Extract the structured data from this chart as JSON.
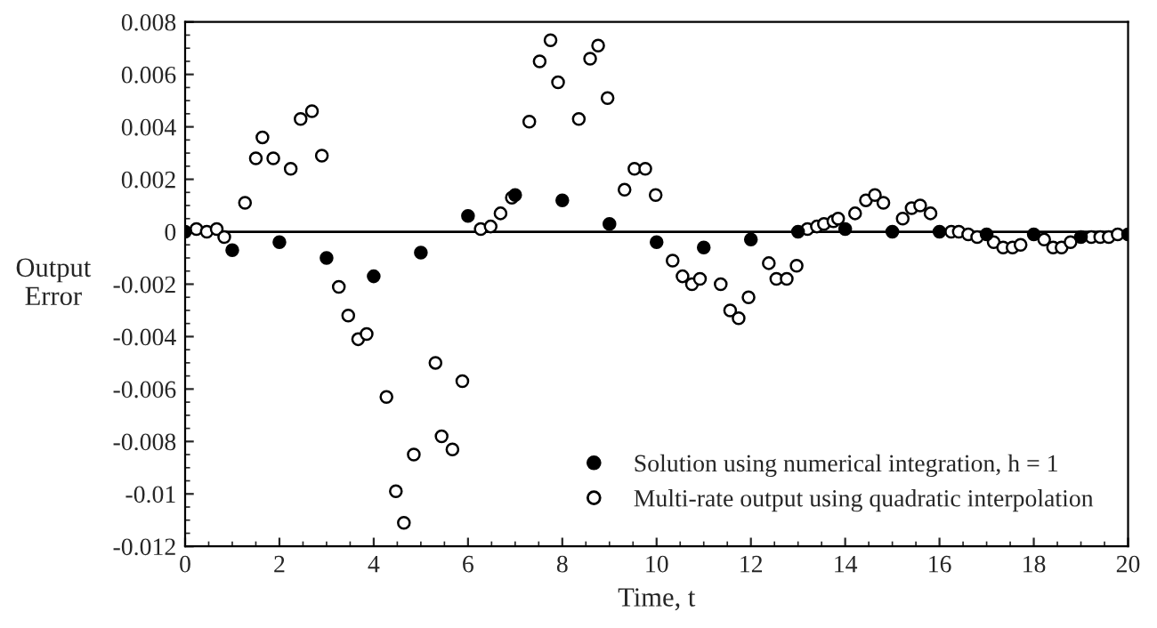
{
  "chart_data": {
    "type": "scatter",
    "xlabel": "Time, t",
    "ylabel": "Output\nError",
    "xlim": [
      0,
      20
    ],
    "ylim": [
      -0.012,
      0.008
    ],
    "xticks": [
      0,
      2,
      4,
      6,
      8,
      10,
      12,
      14,
      16,
      18,
      20
    ],
    "yticks": [
      -0.012,
      -0.01,
      -0.008,
      -0.006,
      -0.004,
      -0.002,
      0,
      0.002,
      0.004,
      0.006,
      0.008
    ],
    "grid": false,
    "legend": "bottom right",
    "ref_lines": [
      {
        "axis": "y",
        "value": 0,
        "color": "#000000"
      }
    ],
    "series": [
      {
        "name": "Solution using numerical integration, h = 1",
        "color": "#000000",
        "marker": "circle",
        "x": [
          0,
          1,
          2,
          3,
          4,
          5,
          6,
          7,
          8,
          9,
          10,
          11,
          12,
          13,
          14,
          15,
          16,
          17,
          18,
          19,
          20
        ],
        "values": [
          0,
          -0.0007,
          -0.0004,
          -0.001,
          -0.0017,
          -0.0008,
          0.0006,
          0.0014,
          0.0012,
          0.0003,
          -0.0004,
          -0.0006,
          -0.0003,
          0,
          0.0001,
          0,
          0,
          -0.0001,
          -0.0001,
          -0.0002,
          -0.0001
        ]
      },
      {
        "name": "Multi-rate output using quadratic interpolation",
        "color": "#ffffff",
        "marker": "circle",
        "x": [
          0.24,
          0.46,
          0.67,
          0.83,
          1.27,
          1.5,
          1.64,
          1.87,
          2.24,
          2.45,
          2.69,
          2.9,
          3.26,
          3.46,
          3.67,
          3.85,
          4.27,
          4.47,
          4.64,
          4.85,
          5.31,
          5.44,
          5.67,
          5.88,
          6.27,
          6.48,
          6.69,
          6.93,
          7.3,
          7.52,
          7.75,
          7.91,
          8.35,
          8.59,
          8.76,
          8.96,
          9.32,
          9.53,
          9.76,
          9.98,
          10.34,
          10.55,
          10.75,
          10.92,
          11.36,
          11.56,
          11.74,
          11.95,
          12.38,
          12.54,
          12.76,
          12.97,
          13.2,
          13.4,
          13.55,
          13.75,
          13.85,
          14.21,
          14.44,
          14.63,
          14.81,
          15.22,
          15.41,
          15.59,
          15.81,
          16.25,
          16.41,
          16.61,
          16.8,
          17.15,
          17.35,
          17.55,
          17.72,
          18.22,
          18.41,
          18.59,
          18.78,
          19.22,
          19.41,
          19.59,
          19.78
        ],
        "values": [
          0.0001,
          0,
          0.0001,
          -0.0002,
          0.0011,
          0.0028,
          0.0036,
          0.0028,
          0.0024,
          0.0043,
          0.0046,
          0.0029,
          -0.0021,
          -0.0032,
          -0.0041,
          -0.0039,
          -0.0063,
          -0.0099,
          -0.0111,
          -0.0085,
          -0.005,
          -0.0078,
          -0.0083,
          -0.0057,
          0.0001,
          0.0002,
          0.0007,
          0.0013,
          0.0042,
          0.0065,
          0.0073,
          0.0057,
          0.0043,
          0.0066,
          0.0071,
          0.0051,
          0.0016,
          0.0024,
          0.0024,
          0.0014,
          -0.0011,
          -0.0017,
          -0.002,
          -0.0018,
          -0.002,
          -0.003,
          -0.0033,
          -0.0025,
          -0.0012,
          -0.0018,
          -0.0018,
          -0.0013,
          0.0001,
          0.0002,
          0.0003,
          0.0004,
          0.0005,
          0.0007,
          0.0012,
          0.0014,
          0.0011,
          0.0005,
          0.0009,
          0.001,
          0.0007,
          0,
          0,
          -0.0001,
          -0.0002,
          -0.0004,
          -0.0006,
          -0.0006,
          -0.0005,
          -0.0003,
          -0.0006,
          -0.0006,
          -0.0004,
          -0.0002,
          -0.0002,
          -0.0002,
          -0.0001
        ]
      }
    ]
  }
}
